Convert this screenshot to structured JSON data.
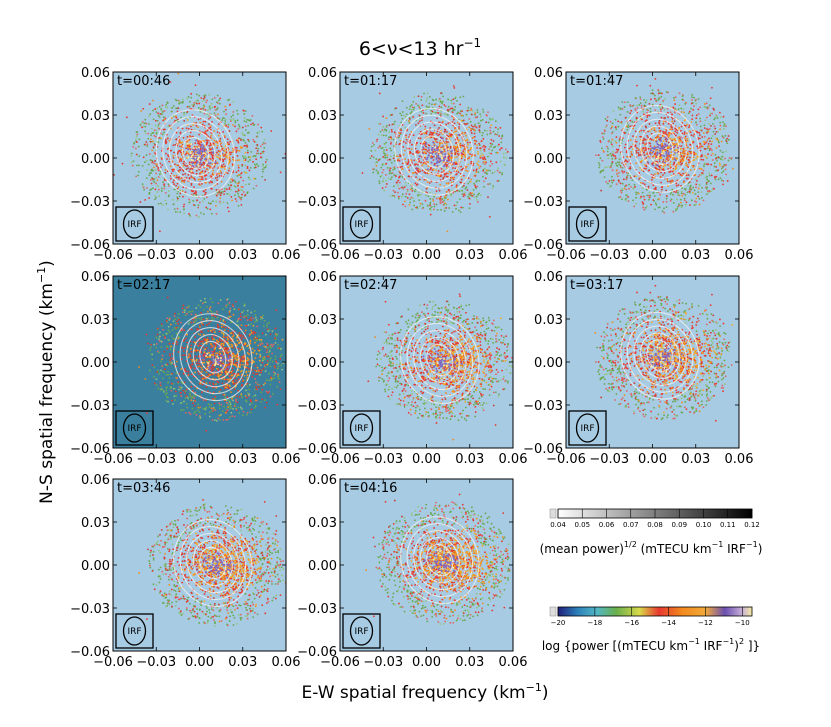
{
  "chart_data": {
    "type": "scatter",
    "title": "6<ν<13 hr",
    "title_sup": "−1",
    "xlabel": "E-W spatial frequency (km",
    "xlabel_sup": "−1",
    "xlabel_end": ")",
    "ylabel": "N-S spatial frequency (km",
    "ylabel_sup": "−1",
    "ylabel_end": ")",
    "xlim": [
      -0.06,
      0.06
    ],
    "ylim": [
      -0.06,
      0.06
    ],
    "ticks": [
      -0.06,
      -0.03,
      0.0,
      0.03,
      0.06
    ],
    "tick_labels": [
      "−0.06",
      "−0.03",
      "0.00",
      "0.03",
      "0.06"
    ],
    "irf_label": "IRF",
    "panels": [
      {
        "title": "t=00:46",
        "bg": "#a6cbe3",
        "cx": 0.0,
        "cy": 0.002
      },
      {
        "title": "t=01:17",
        "bg": "#a6cbe3",
        "cx": 0.008,
        "cy": 0.003
      },
      {
        "title": "t=01:47",
        "bg": "#a6cbe3",
        "cx": 0.008,
        "cy": 0.005
      },
      {
        "title": "t=02:17",
        "bg": "#3b7f9e",
        "cx": 0.012,
        "cy": 0.002
      },
      {
        "title": "t=02:47",
        "bg": "#a6cbe3",
        "cx": 0.012,
        "cy": 0.0
      },
      {
        "title": "t=03:17",
        "bg": "#a6cbe3",
        "cx": 0.008,
        "cy": 0.003
      },
      {
        "title": "t=03:46",
        "bg": "#a6cbe3",
        "cx": 0.012,
        "cy": 0.0
      },
      {
        "title": "t=04:16",
        "bg": "#a6cbe3",
        "cx": 0.012,
        "cy": 0.002
      }
    ],
    "colorbar_mean": {
      "ticks": [
        "0.04",
        "0.05",
        "0.06",
        "0.07",
        "0.08",
        "0.09",
        "0.10",
        "0.11",
        "0.12"
      ],
      "label": "(mean power)",
      "label_sup": "1/2",
      "label_rest": " (mTECU km",
      "label_rest_sup": "−1",
      "label_end": " IRF",
      "label_end_sup": "−1",
      "label_close": ")"
    },
    "colorbar_log": {
      "ticks": [
        "−20",
        "−18",
        "−16",
        "−14",
        "−12",
        "−10"
      ],
      "label": "log {power [(mTECU km",
      "label_sup": "−1",
      "label_mid": " IRF",
      "label_mid_sup": "−1",
      "label_close": ")",
      "label_close_sup": "2",
      "label_end": " ]}"
    }
  }
}
